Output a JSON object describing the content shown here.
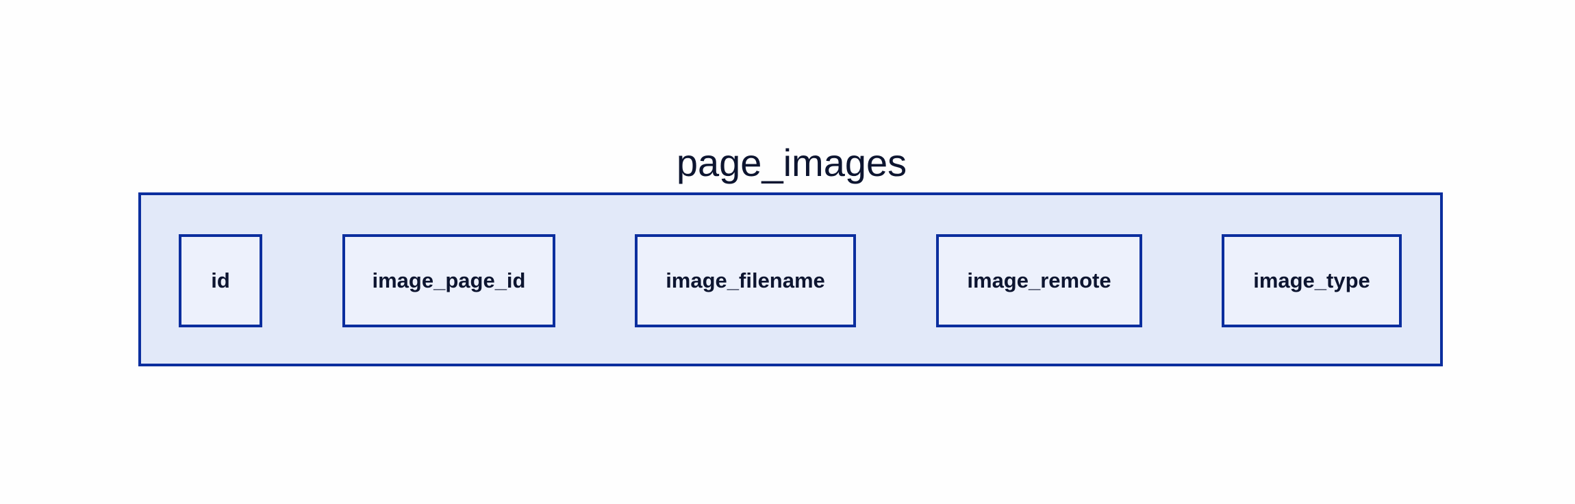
{
  "table": {
    "name": "page_images",
    "fields": [
      "id",
      "image_page_id",
      "image_filename",
      "image_remote",
      "image_type"
    ]
  },
  "colors": {
    "border": "#0b2e9e",
    "container_fill": "#e2e9f9",
    "field_fill": "#edf1fc",
    "text": "#0d1530"
  }
}
